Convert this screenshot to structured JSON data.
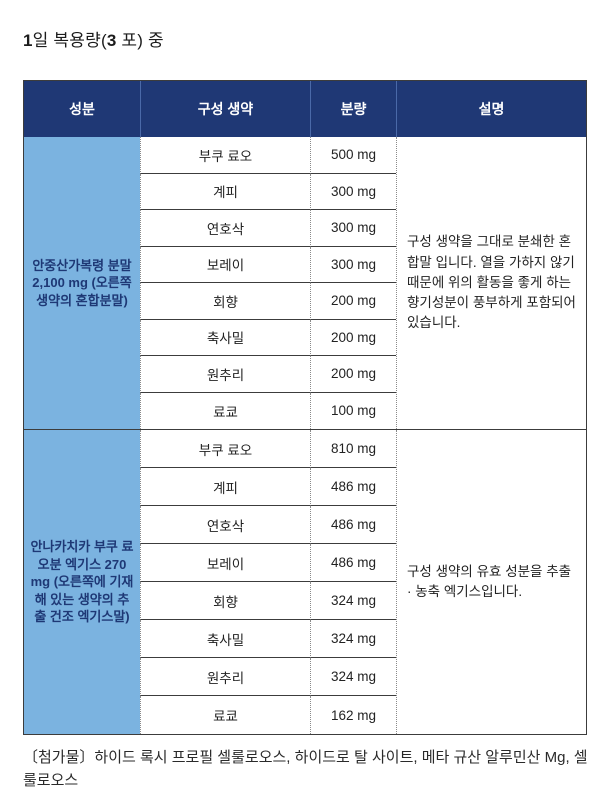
{
  "title": {
    "num1": "1",
    "mid": "일 복용량(",
    "num2": "3",
    "tail": " 포) 중"
  },
  "table": {
    "headers": {
      "ingredient": "성분",
      "herb": "구성 생약",
      "amount": "분량",
      "description": "설명"
    },
    "sections": [
      {
        "ingredient": "안중산가복령 분말 2,100 mg (오른쪽 생약의 혼합분말)",
        "description": "구성 생약을 그대로 분쇄한 혼합말 입니다. 열을 가하지 않기 때문에 위의 활동을 좋게 하는 향기성분이 풍부하게 포함되어 있습니다.",
        "rows": [
          {
            "herb": "부쿠 료오",
            "amount": "500 mg"
          },
          {
            "herb": "계피",
            "amount": "300 mg"
          },
          {
            "herb": "연호삭",
            "amount": "300 mg"
          },
          {
            "herb": "보레이",
            "amount": "300 mg"
          },
          {
            "herb": "회향",
            "amount": "200 mg"
          },
          {
            "herb": "축사밀",
            "amount": "200 mg"
          },
          {
            "herb": "원추리",
            "amount": "200 mg"
          },
          {
            "herb": "료쿄",
            "amount": "100 mg"
          }
        ]
      },
      {
        "ingredient": "안나카치카 부쿠 료오분 엑기스 270 mg (오른쪽에 기재해 있는 생약의 추출 건조 엑기스말)",
        "description": "구성 생약의 유효 성분을 추출 · 농축 엑기스입니다.",
        "rows": [
          {
            "herb": "부쿠 료오",
            "amount": "810 mg"
          },
          {
            "herb": "계피",
            "amount": "486 mg"
          },
          {
            "herb": "연호삭",
            "amount": "486 mg"
          },
          {
            "herb": "보레이",
            "amount": "486 mg"
          },
          {
            "herb": "회향",
            "amount": "324 mg"
          },
          {
            "herb": "축사밀",
            "amount": "324 mg"
          },
          {
            "herb": "원추리",
            "amount": "324 mg"
          },
          {
            "herb": "료쿄",
            "amount": "162 mg"
          }
        ]
      }
    ]
  },
  "footnote": "〔첨가물〕하이드 록시 프로필 셀룰로오스, 하이드로 탈 사이트, 메타 규산 알루민산 Mg, 셀룰로오스",
  "colors": {
    "header_bg": "#1f3875",
    "ingredient_bg": "#7bb3e0",
    "ingredient_text": "#1e3875"
  }
}
